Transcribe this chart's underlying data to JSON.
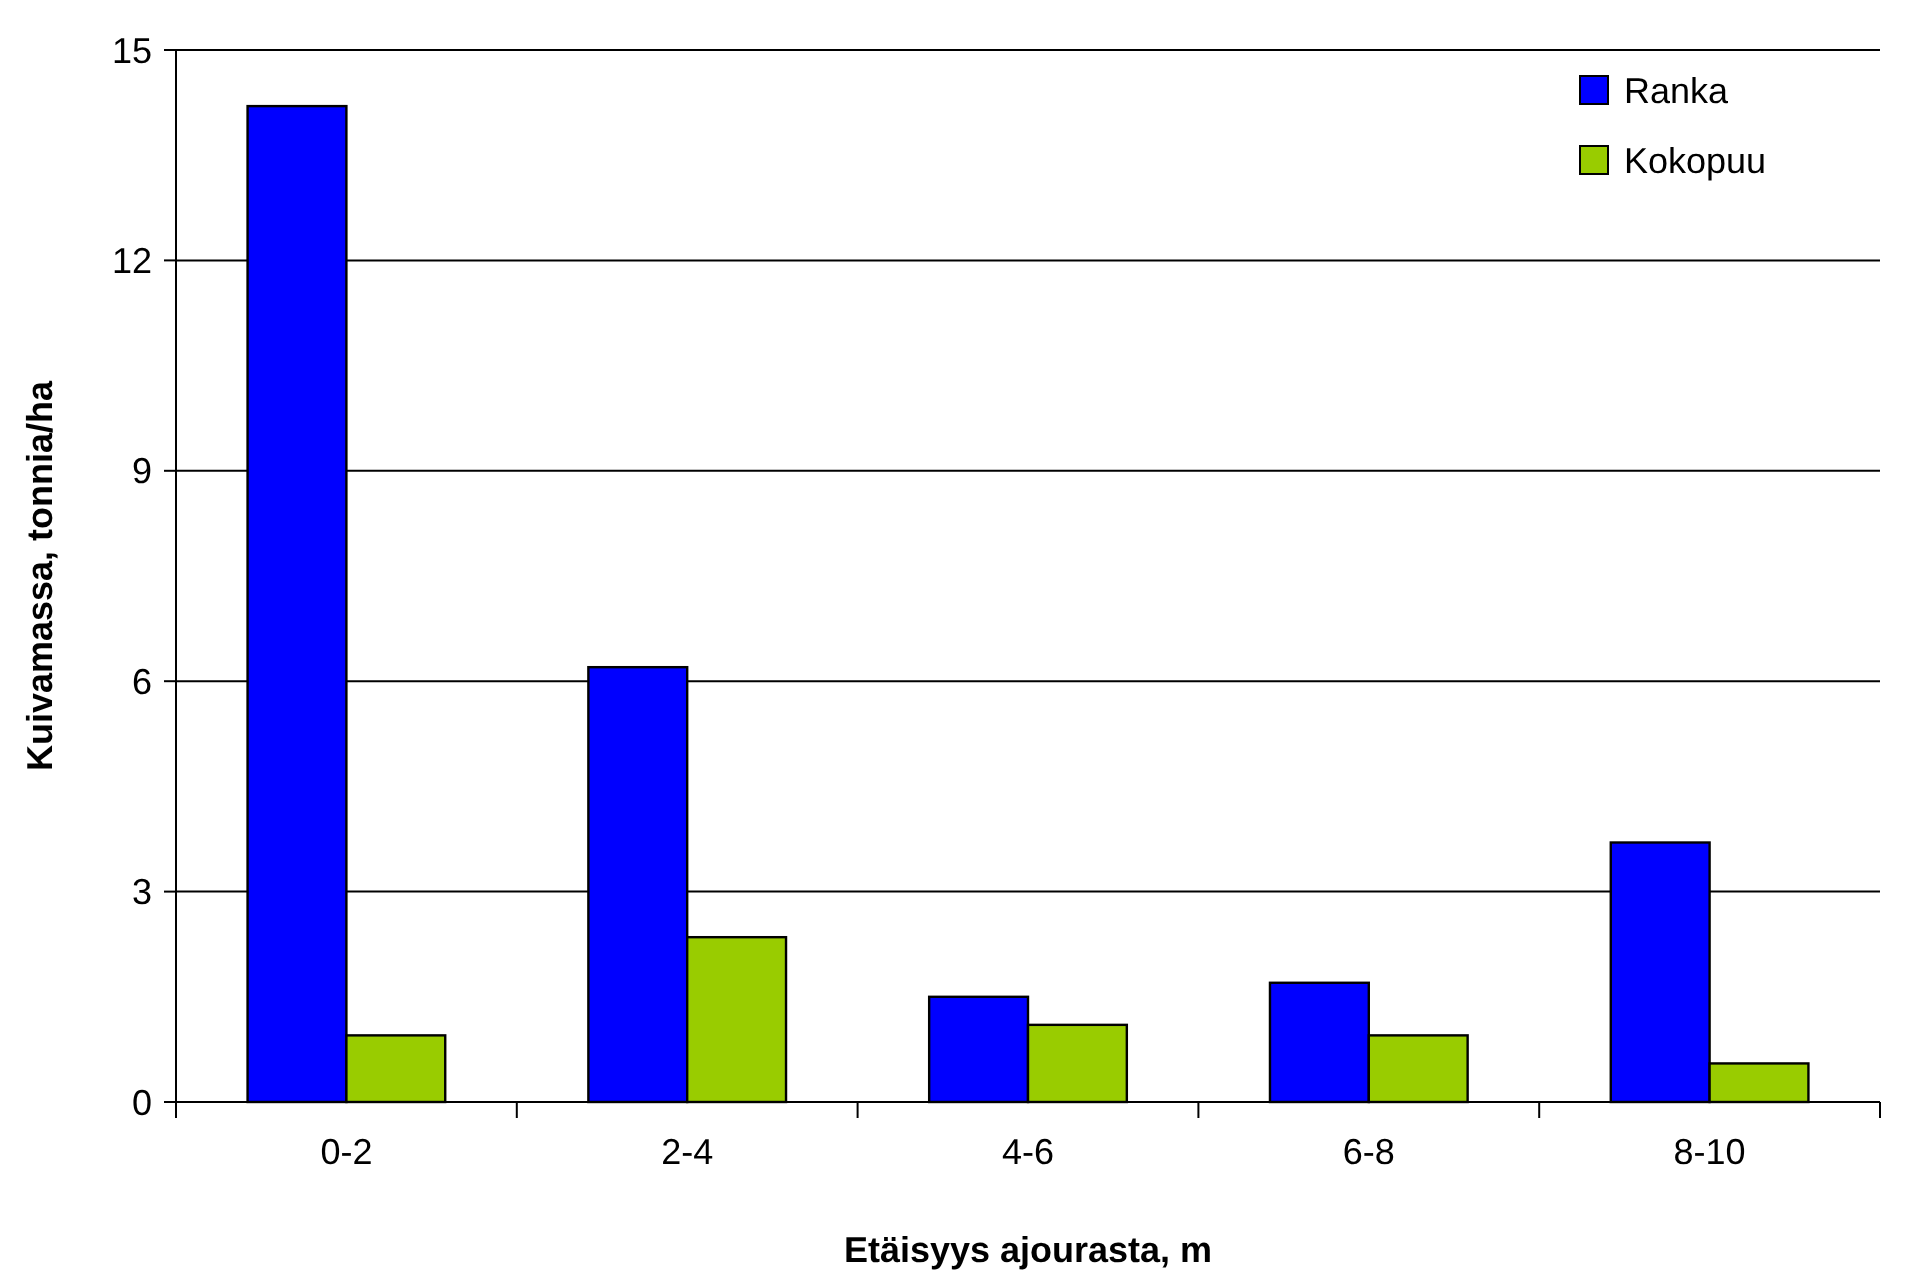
{
  "chart_data": {
    "type": "bar",
    "xlabel": "Etäisyys ajourasta, m",
    "ylabel": "Kuivamassa, tonnia/ha",
    "categories": [
      "0-2",
      "2-4",
      "4-6",
      "6-8",
      "8-10"
    ],
    "series": [
      {
        "name": "Ranka",
        "color": "#0000ff",
        "values": [
          14.2,
          6.2,
          1.5,
          1.7,
          3.7
        ]
      },
      {
        "name": "Kokopuu",
        "color": "#99cc00",
        "values": [
          0.95,
          2.35,
          1.1,
          0.95,
          0.55
        ]
      }
    ],
    "ylim": [
      0,
      15
    ],
    "yticks": [
      0,
      3,
      6,
      9,
      12,
      15
    ],
    "grid": "y",
    "legend": "top right"
  }
}
